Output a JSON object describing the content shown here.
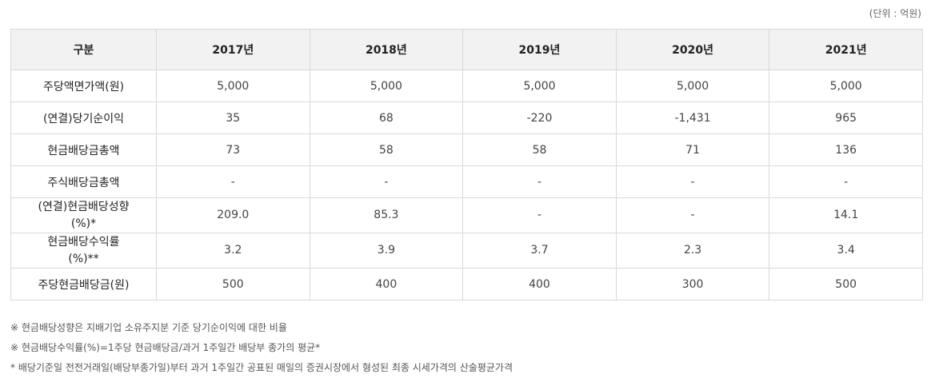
{
  "unit_note": "(단위 : 억원)",
  "table": {
    "headers": [
      "구분",
      "2017년",
      "2018년",
      "2019년",
      "2020년",
      "2021년"
    ],
    "rows": [
      {
        "label": "주당액면가액(원)",
        "values": [
          "5,000",
          "5,000",
          "5,000",
          "5,000",
          "5,000"
        ]
      },
      {
        "label": "(연결)당기순이익",
        "values": [
          "35",
          "68",
          "-220",
          "-1,431",
          "965"
        ]
      },
      {
        "label": "현금배당금총액",
        "values": [
          "73",
          "58",
          "58",
          "71",
          "136"
        ]
      },
      {
        "label": "주식배당금총액",
        "values": [
          "-",
          "-",
          "-",
          "-",
          "-"
        ]
      },
      {
        "label_line1": "(연결)현금배당성향",
        "label_line2": "(%)*",
        "values": [
          "209.0",
          "85.3",
          "-",
          "-",
          "14.1"
        ]
      },
      {
        "label_line1": "현금배당수익률",
        "label_line2": "(%)**",
        "values": [
          "3.2",
          "3.9",
          "3.7",
          "2.3",
          "3.4"
        ]
      },
      {
        "label": "주당현금배당금(원)",
        "values": [
          "500",
          "400",
          "400",
          "300",
          "500"
        ]
      }
    ]
  },
  "footnotes": [
    "※ 현금배당성향은 지배기업 소유주지분 기준 당기순이익에 대한 비율",
    "※ 현금배당수익률(%)=1주당 현금배당금/과거 1주일간 배당부 종가의 평균*",
    "* 배당기준일 전전거래일(배당부종가일)부터 과거 1주일간 공표된 매일의 증권시장에서 형성된 최종 시세가격의 산술평균가격"
  ]
}
